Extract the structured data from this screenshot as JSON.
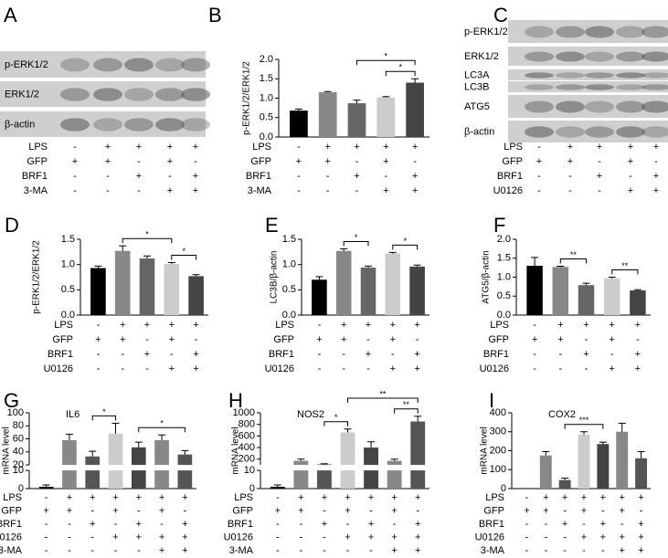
{
  "blots": [
    {
      "panel": "A",
      "bands": [
        "p-ERK1/2",
        "ERK1/2",
        "β-actin"
      ],
      "conditions": [
        {
          "name": "LPS",
          "signs": [
            "-",
            "+",
            "+",
            "+",
            "+"
          ]
        },
        {
          "name": "GFP",
          "signs": [
            "+",
            "+",
            "-",
            "+",
            "-"
          ]
        },
        {
          "name": "BRF1",
          "signs": [
            "-",
            "-",
            "+",
            "-",
            "+"
          ]
        },
        {
          "name": "3-MA",
          "signs": [
            "-",
            "-",
            "-",
            "+",
            "+"
          ]
        }
      ]
    },
    {
      "panel": "C",
      "bands": [
        "p-ERK1/2",
        "ERK1/2",
        "LC3A",
        "LC3B",
        "ATG5",
        "β-actin"
      ],
      "conditions": [
        {
          "name": "LPS",
          "signs": [
            "-",
            "+",
            "+",
            "+",
            "+"
          ]
        },
        {
          "name": "GFP",
          "signs": [
            "+",
            "+",
            "-",
            "+",
            "-"
          ]
        },
        {
          "name": "BRF1",
          "signs": [
            "-",
            "-",
            "+",
            "-",
            "+"
          ]
        },
        {
          "name": "U0126",
          "signs": [
            "-",
            "-",
            "-",
            "+",
            "+"
          ]
        }
      ]
    }
  ],
  "chart_data": [
    {
      "type": "bar",
      "panel": "B",
      "ylabel": "p-ERK1/2/ERK1/2",
      "values": [
        0.68,
        1.15,
        0.87,
        1.02,
        1.4
      ],
      "errors": [
        0.04,
        0.02,
        0.08,
        0.02,
        0.1
      ],
      "colors": [
        "#000000",
        "#888888",
        "#666666",
        "#cccccc",
        "#444444"
      ],
      "ylim": [
        0,
        2
      ],
      "yticks": [
        {
          "value": 0,
          "label": "0.0"
        },
        0.5,
        {
          "value": 1,
          "label": "1.0"
        },
        1.5,
        {
          "value": 2,
          "label": "2.0"
        }
      ],
      "significance": [
        {
          "bars": [
            3,
            4
          ],
          "label": "*"
        },
        {
          "bars": [
            2,
            4
          ],
          "label": "*"
        }
      ],
      "conditions": [
        {
          "name": "LPS",
          "signs": [
            "-",
            "+",
            "+",
            "+",
            "+"
          ]
        },
        {
          "name": "GFP",
          "signs": [
            "+",
            "+",
            "-",
            "+",
            "-"
          ]
        },
        {
          "name": "BRF1",
          "signs": [
            "-",
            "-",
            "+",
            "-",
            "+"
          ]
        },
        {
          "name": "3-MA",
          "signs": [
            "-",
            "-",
            "-",
            "+",
            "+"
          ]
        }
      ]
    },
    {
      "type": "bar",
      "panel": "D",
      "ylabel": "p-ERK1/2/ERK1/2",
      "values": [
        0.93,
        1.27,
        1.12,
        1.01,
        0.77
      ],
      "errors": [
        0.04,
        0.1,
        0.05,
        0.03,
        0.03
      ],
      "colors": [
        "#000000",
        "#888888",
        "#666666",
        "#cccccc",
        "#444444"
      ],
      "ylim": [
        0,
        1.5
      ],
      "yticks": [
        {
          "value": 0,
          "label": "0.0"
        },
        0.5,
        {
          "value": 1,
          "label": "1.0"
        },
        1.5
      ],
      "significance": [
        {
          "bars": [
            3,
            4
          ],
          "label": "*"
        },
        {
          "bars": [
            1,
            3
          ],
          "label": "*"
        }
      ],
      "conditions": [
        {
          "name": "LPS",
          "signs": [
            "-",
            "+",
            "+",
            "+",
            "+"
          ]
        },
        {
          "name": "GFP",
          "signs": [
            "+",
            "+",
            "-",
            "+",
            "-"
          ]
        },
        {
          "name": "BRF1",
          "signs": [
            "-",
            "-",
            "+",
            "-",
            "+"
          ]
        },
        {
          "name": "U0126",
          "signs": [
            "-",
            "-",
            "-",
            "+",
            "+"
          ]
        }
      ]
    },
    {
      "type": "bar",
      "panel": "E",
      "ylabel": "LC3B/β-actin",
      "values": [
        0.7,
        1.27,
        0.94,
        1.22,
        0.96
      ],
      "errors": [
        0.06,
        0.04,
        0.03,
        0.02,
        0.03
      ],
      "colors": [
        "#000000",
        "#888888",
        "#666666",
        "#cccccc",
        "#444444"
      ],
      "ylim": [
        0,
        1.5
      ],
      "yticks": [
        {
          "value": 0,
          "label": "0.0"
        },
        0.5,
        {
          "value": 1,
          "label": "1.0"
        },
        1.5
      ],
      "significance": [
        {
          "bars": [
            1,
            2
          ],
          "label": "*"
        },
        {
          "bars": [
            3,
            4
          ],
          "label": "*"
        }
      ],
      "conditions": [
        {
          "name": "LPS",
          "signs": [
            "-",
            "+",
            "+",
            "+",
            "+"
          ]
        },
        {
          "name": "GFP",
          "signs": [
            "+",
            "+",
            "-",
            "+",
            "-"
          ]
        },
        {
          "name": "BRF1",
          "signs": [
            "-",
            "-",
            "+",
            "-",
            "+"
          ]
        },
        {
          "name": "U0126",
          "signs": [
            "-",
            "-",
            "-",
            "+",
            "+"
          ]
        }
      ]
    },
    {
      "type": "bar",
      "panel": "F",
      "ylabel": "ATG5/β-actin",
      "values": [
        1.3,
        1.27,
        0.79,
        0.97,
        0.65
      ],
      "errors": [
        0.22,
        0.02,
        0.05,
        0.03,
        0.02
      ],
      "colors": [
        "#000000",
        "#888888",
        "#666666",
        "#cccccc",
        "#444444"
      ],
      "ylim": [
        0,
        2
      ],
      "yticks": [
        {
          "value": 0,
          "label": "0.0"
        },
        0.5,
        {
          "value": 1,
          "label": "1.0"
        },
        1.5,
        {
          "value": 2,
          "label": "2.0"
        }
      ],
      "significance": [
        {
          "bars": [
            1,
            2
          ],
          "label": "**"
        },
        {
          "bars": [
            3,
            4
          ],
          "label": "**"
        }
      ],
      "conditions": [
        {
          "name": "LPS",
          "signs": [
            "-",
            "+",
            "+",
            "+",
            "+"
          ]
        },
        {
          "name": "GFP",
          "signs": [
            "+",
            "+",
            "-",
            "+",
            "-"
          ]
        },
        {
          "name": "BRF1",
          "signs": [
            "-",
            "-",
            "+",
            "-",
            "+"
          ]
        },
        {
          "name": "U0126",
          "signs": [
            "-",
            "-",
            "-",
            "+",
            "+"
          ]
        }
      ]
    },
    {
      "type": "bar",
      "panel": "G",
      "title": "IL6",
      "ylabel": "mRNA level",
      "values": [
        1,
        58,
        33,
        68,
        47,
        58,
        36
      ],
      "errors": [
        1,
        9,
        8,
        16,
        8,
        8,
        6
      ],
      "colors": [
        "#000000",
        "#888888",
        "#555555",
        "#cccccc",
        "#444444",
        "#888888",
        "#555555"
      ],
      "ylim": [
        0,
        100
      ],
      "axis_break": [
        10,
        20
      ],
      "yticks": [
        0,
        10,
        20,
        40,
        60,
        80,
        100
      ],
      "significance": [
        {
          "bars": [
            2,
            3
          ],
          "label": "*"
        },
        {
          "bars": [
            4,
            6
          ],
          "label": "*"
        }
      ],
      "conditions": [
        {
          "name": "LPS",
          "signs": [
            "-",
            "+",
            "+",
            "+",
            "+",
            "+",
            "+"
          ]
        },
        {
          "name": "GFP",
          "signs": [
            "+",
            "+",
            "-",
            "+",
            "-",
            "+",
            "-"
          ]
        },
        {
          "name": "BRF1",
          "signs": [
            "-",
            "-",
            "+",
            "-",
            "+",
            "-",
            "+"
          ]
        },
        {
          "name": "U0126",
          "signs": [
            "-",
            "-",
            "-",
            "+",
            "+",
            "+",
            "+"
          ]
        },
        {
          "name": "3-MA",
          "signs": [
            "-",
            "-",
            "-",
            "-",
            "-",
            "+",
            "+"
          ]
        }
      ]
    },
    {
      "type": "bar",
      "panel": "H",
      "title": "NOS2",
      "ylabel": "mRNA level",
      "values": [
        1,
        170,
        110,
        660,
        400,
        170,
        850
      ],
      "errors": [
        1,
        30,
        10,
        60,
        100,
        30,
        90
      ],
      "colors": [
        "#000000",
        "#888888",
        "#555555",
        "#cccccc",
        "#444444",
        "#888888",
        "#555555"
      ],
      "ylim": [
        0,
        1000
      ],
      "axis_break": [
        10,
        100
      ],
      "yticks": [
        0,
        10,
        200,
        400,
        600,
        800,
        1000
      ],
      "significance": [
        {
          "bars": [
            2,
            3
          ],
          "label": "*"
        },
        {
          "bars": [
            5,
            6
          ],
          "label": "**"
        },
        {
          "bars": [
            3,
            6
          ],
          "label": "**"
        }
      ],
      "conditions": [
        {
          "name": "LPS",
          "signs": [
            "-",
            "+",
            "+",
            "+",
            "+",
            "+",
            "+"
          ]
        },
        {
          "name": "GFP",
          "signs": [
            "+",
            "+",
            "-",
            "+",
            "-",
            "+",
            "-"
          ]
        },
        {
          "name": "BRF1",
          "signs": [
            "-",
            "-",
            "+",
            "-",
            "+",
            "-",
            "+"
          ]
        },
        {
          "name": "U0126",
          "signs": [
            "-",
            "-",
            "-",
            "+",
            "+",
            "+",
            "+"
          ]
        },
        {
          "name": "3-MA",
          "signs": [
            "-",
            "-",
            "-",
            "-",
            "-",
            "+",
            "+"
          ]
        }
      ]
    },
    {
      "type": "bar",
      "panel": "I",
      "title": "COX2",
      "ylabel": "mRNA level",
      "values": [
        0,
        175,
        45,
        285,
        235,
        300,
        160
      ],
      "errors": [
        0,
        20,
        10,
        15,
        10,
        45,
        35
      ],
      "colors": [
        "#000000",
        "#888888",
        "#555555",
        "#cccccc",
        "#444444",
        "#888888",
        "#555555"
      ],
      "ylim": [
        0,
        400
      ],
      "yticks": [
        0,
        100,
        200,
        300,
        400
      ],
      "significance": [
        {
          "bars": [
            2,
            4
          ],
          "label": "***"
        }
      ],
      "conditions": [
        {
          "name": "LPS",
          "signs": [
            "-",
            "+",
            "+",
            "+",
            "+",
            "+",
            "+"
          ]
        },
        {
          "name": "GFP",
          "signs": [
            "+",
            "+",
            "-",
            "+",
            "-",
            "+",
            "-"
          ]
        },
        {
          "name": "BRF1",
          "signs": [
            "-",
            "-",
            "+",
            "-",
            "+",
            "-",
            "+"
          ]
        },
        {
          "name": "U0126",
          "signs": [
            "-",
            "-",
            "-",
            "+",
            "+",
            "+",
            "+"
          ]
        },
        {
          "name": "3-MA",
          "signs": [
            "-",
            "-",
            "-",
            "-",
            "-",
            "+",
            "+"
          ]
        }
      ]
    }
  ]
}
